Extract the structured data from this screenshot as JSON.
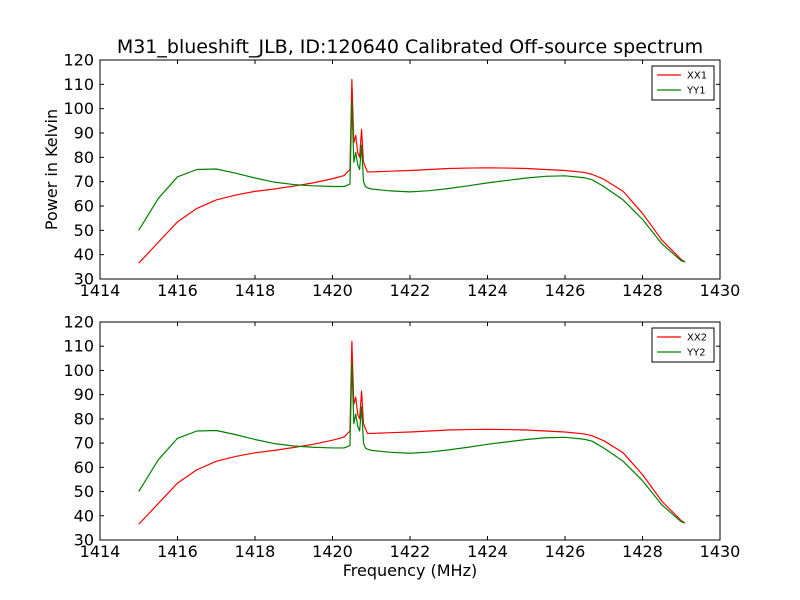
{
  "chart_data": [
    {
      "type": "line",
      "title": "M31_blueshift_JLB, ID:120640 Calibrated Off-source spectrum",
      "xlabel": "",
      "ylabel": "Power in Kelvin",
      "xlim": [
        1414,
        1430
      ],
      "ylim": [
        30,
        120
      ],
      "xticks": [
        "1414",
        "1416",
        "1418",
        "1420",
        "1422",
        "1424",
        "1426",
        "1428",
        "1430"
      ],
      "yticks": [
        "30",
        "40",
        "50",
        "60",
        "70",
        "80",
        "90",
        "100",
        "110",
        "120"
      ],
      "legend_position": "top-right",
      "grid": false,
      "series": [
        {
          "name": "XX1",
          "color": "#ff0000",
          "x": [
            1415.0,
            1415.5,
            1416.0,
            1416.5,
            1417.0,
            1417.5,
            1418.0,
            1418.5,
            1419.0,
            1419.5,
            1420.0,
            1420.3,
            1420.45,
            1420.5,
            1420.55,
            1420.6,
            1420.65,
            1420.7,
            1420.75,
            1420.8,
            1420.85,
            1420.9,
            1421.0,
            1421.5,
            1422.0,
            1422.5,
            1423.0,
            1423.5,
            1424.0,
            1424.5,
            1425.0,
            1425.5,
            1426.0,
            1426.5,
            1426.7,
            1427.0,
            1427.5,
            1428.0,
            1428.5,
            1429.0,
            1429.1
          ],
          "y": [
            36.5,
            45,
            53.5,
            59,
            62.5,
            64.5,
            66,
            67,
            68.2,
            69.5,
            71.2,
            72.5,
            75,
            112,
            86,
            89,
            82,
            80,
            91.5,
            78,
            76,
            74,
            74,
            74.3,
            74.6,
            75,
            75.4,
            75.6,
            75.7,
            75.6,
            75.4,
            75,
            74.6,
            73.8,
            73,
            71,
            66,
            57,
            46,
            38,
            37
          ]
        },
        {
          "name": "YY1",
          "color": "#008000",
          "x": [
            1415.0,
            1415.5,
            1416.0,
            1416.5,
            1417.0,
            1417.5,
            1418.0,
            1418.5,
            1419.0,
            1419.5,
            1420.0,
            1420.3,
            1420.45,
            1420.5,
            1420.55,
            1420.6,
            1420.65,
            1420.7,
            1420.75,
            1420.8,
            1420.85,
            1420.9,
            1421.0,
            1421.5,
            1422.0,
            1422.5,
            1423.0,
            1423.5,
            1424.0,
            1424.5,
            1425.0,
            1425.5,
            1426.0,
            1426.5,
            1426.7,
            1427.0,
            1427.5,
            1428.0,
            1428.5,
            1429.0,
            1429.1
          ],
          "y": [
            50,
            63,
            72,
            75,
            75.2,
            73.5,
            71.5,
            69.8,
            68.8,
            68.3,
            68,
            68,
            69,
            103,
            78,
            82,
            77,
            75,
            85,
            70,
            68,
            67.5,
            67,
            66.2,
            65.8,
            66.3,
            67.2,
            68.3,
            69.5,
            70.5,
            71.5,
            72.2,
            72.4,
            71.6,
            70.8,
            68,
            62.5,
            54.5,
            44.5,
            37.5,
            37
          ]
        }
      ]
    },
    {
      "type": "line",
      "title": "",
      "xlabel": "Frequency (MHz)",
      "ylabel": "",
      "xlim": [
        1414,
        1430
      ],
      "ylim": [
        30,
        120
      ],
      "xticks": [
        "1414",
        "1416",
        "1418",
        "1420",
        "1422",
        "1424",
        "1426",
        "1428",
        "1430"
      ],
      "yticks": [
        "30",
        "40",
        "50",
        "60",
        "70",
        "80",
        "90",
        "100",
        "110",
        "120"
      ],
      "legend_position": "top-right",
      "grid": false,
      "series": [
        {
          "name": "XX2",
          "color": "#ff0000",
          "x": [
            1415.0,
            1415.5,
            1416.0,
            1416.5,
            1417.0,
            1417.5,
            1418.0,
            1418.5,
            1419.0,
            1419.5,
            1420.0,
            1420.3,
            1420.45,
            1420.5,
            1420.55,
            1420.6,
            1420.65,
            1420.7,
            1420.75,
            1420.8,
            1420.85,
            1420.9,
            1421.0,
            1421.5,
            1422.0,
            1422.5,
            1423.0,
            1423.5,
            1424.0,
            1424.5,
            1425.0,
            1425.5,
            1426.0,
            1426.5,
            1426.7,
            1427.0,
            1427.5,
            1428.0,
            1428.5,
            1429.0,
            1429.1
          ],
          "y": [
            36.5,
            45,
            53.5,
            59,
            62.5,
            64.5,
            66,
            67,
            68.2,
            69.5,
            71.2,
            72.5,
            75,
            112,
            86,
            89,
            82,
            80,
            91.5,
            78,
            76,
            74,
            74,
            74.3,
            74.6,
            75,
            75.4,
            75.6,
            75.7,
            75.6,
            75.4,
            75,
            74.6,
            73.8,
            73,
            71,
            66,
            57,
            46,
            38,
            37
          ]
        },
        {
          "name": "YY2",
          "color": "#008000",
          "x": [
            1415.0,
            1415.5,
            1416.0,
            1416.5,
            1417.0,
            1417.5,
            1418.0,
            1418.5,
            1419.0,
            1419.5,
            1420.0,
            1420.3,
            1420.45,
            1420.5,
            1420.55,
            1420.6,
            1420.65,
            1420.7,
            1420.75,
            1420.8,
            1420.85,
            1420.9,
            1421.0,
            1421.5,
            1422.0,
            1422.5,
            1423.0,
            1423.5,
            1424.0,
            1424.5,
            1425.0,
            1425.5,
            1426.0,
            1426.5,
            1426.7,
            1427.0,
            1427.5,
            1428.0,
            1428.5,
            1429.0,
            1429.1
          ],
          "y": [
            50,
            63,
            72,
            75,
            75.2,
            73.5,
            71.5,
            69.8,
            68.8,
            68.3,
            68,
            68,
            69,
            103,
            78,
            82,
            77,
            75,
            85,
            70,
            68,
            67.5,
            67,
            66.2,
            65.8,
            66.3,
            67.2,
            68.3,
            69.5,
            70.5,
            71.5,
            72.2,
            72.4,
            71.6,
            70.8,
            68,
            62.5,
            54.5,
            44.5,
            37.5,
            37
          ]
        }
      ]
    }
  ]
}
